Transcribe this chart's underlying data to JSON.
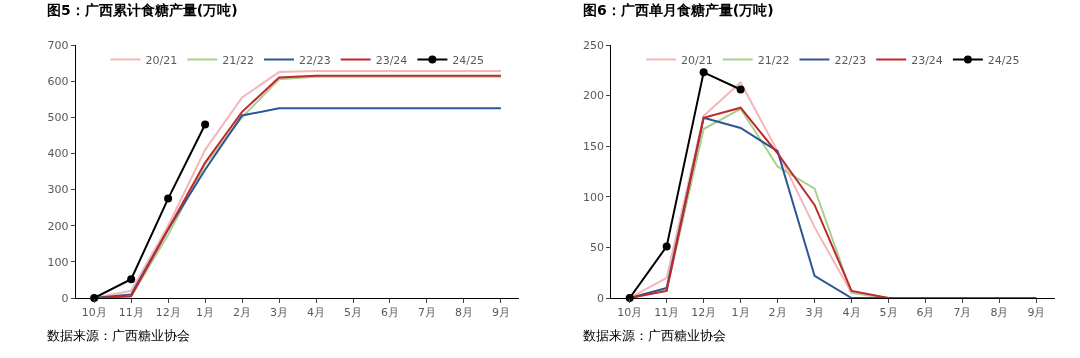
{
  "chart_data": [
    {
      "type": "line",
      "title": "图5：广西累计食糖产量(万吨)",
      "categories": [
        "10月",
        "11月",
        "12月",
        "1月",
        "2月",
        "3月",
        "4月",
        "5月",
        "6月",
        "7月",
        "8月",
        "9月"
      ],
      "ylim": [
        0,
        700
      ],
      "yticks": [
        0,
        100,
        200,
        300,
        400,
        500,
        600,
        700
      ],
      "legend": "top",
      "line_style": "solid",
      "annotations": [
        "数据来源：广西糖业协会"
      ],
      "series": [
        {
          "name": "20/21",
          "color": "#f4b6b8",
          "values": [
            0,
            20,
            200,
            410,
            555,
            625,
            628,
            628,
            628,
            628,
            628,
            628
          ]
        },
        {
          "name": "21/22",
          "color": "#a9d18e",
          "values": [
            0,
            5,
            175,
            370,
            500,
            605,
            612,
            612,
            612,
            612,
            612,
            612
          ]
        },
        {
          "name": "22/23",
          "color": "#2f5597",
          "values": [
            0,
            10,
            190,
            355,
            505,
            525,
            525,
            525,
            525,
            525,
            525,
            525
          ]
        },
        {
          "name": "23/24",
          "color": "#c0282d",
          "values": [
            0,
            5,
            190,
            375,
            515,
            610,
            615,
            615,
            615,
            615,
            615,
            615
          ]
        },
        {
          "name": "24/25",
          "color": "#000000",
          "marker": "circle",
          "values": [
            0,
            52,
            275,
            480,
            null,
            null,
            null,
            null,
            null,
            null,
            null,
            null
          ]
        }
      ]
    },
    {
      "type": "line",
      "title": "图6：广西单月食糖产量(万吨)",
      "categories": [
        "10月",
        "11月",
        "12月",
        "1月",
        "2月",
        "3月",
        "4月",
        "5月",
        "6月",
        "7月",
        "8月",
        "9月"
      ],
      "ylim": [
        0,
        250
      ],
      "yticks": [
        0,
        50,
        100,
        150,
        200,
        250
      ],
      "legend": "top",
      "line_style": "solid",
      "annotations": [
        "数据来源：广西糖业协会"
      ],
      "series": [
        {
          "name": "20/21",
          "color": "#f4b6b8",
          "values": [
            0,
            20,
            180,
            213,
            145,
            70,
            5,
            0,
            0,
            null,
            null,
            null
          ]
        },
        {
          "name": "21/22",
          "color": "#a9d18e",
          "values": [
            0,
            8,
            167,
            187,
            130,
            108,
            5,
            0,
            0,
            null,
            null,
            null
          ]
        },
        {
          "name": "22/23",
          "color": "#2f5597",
          "values": [
            0,
            10,
            178,
            168,
            145,
            22,
            0,
            0,
            0,
            null,
            null,
            null
          ]
        },
        {
          "name": "23/24",
          "color": "#c0282d",
          "values": [
            0,
            7,
            178,
            188,
            143,
            92,
            7,
            0,
            0,
            0,
            0,
            0
          ]
        },
        {
          "name": "24/25",
          "color": "#000000",
          "marker": "circle",
          "values": [
            0,
            51,
            223,
            206,
            null,
            null,
            null,
            null,
            null,
            null,
            null,
            null
          ]
        }
      ]
    }
  ]
}
